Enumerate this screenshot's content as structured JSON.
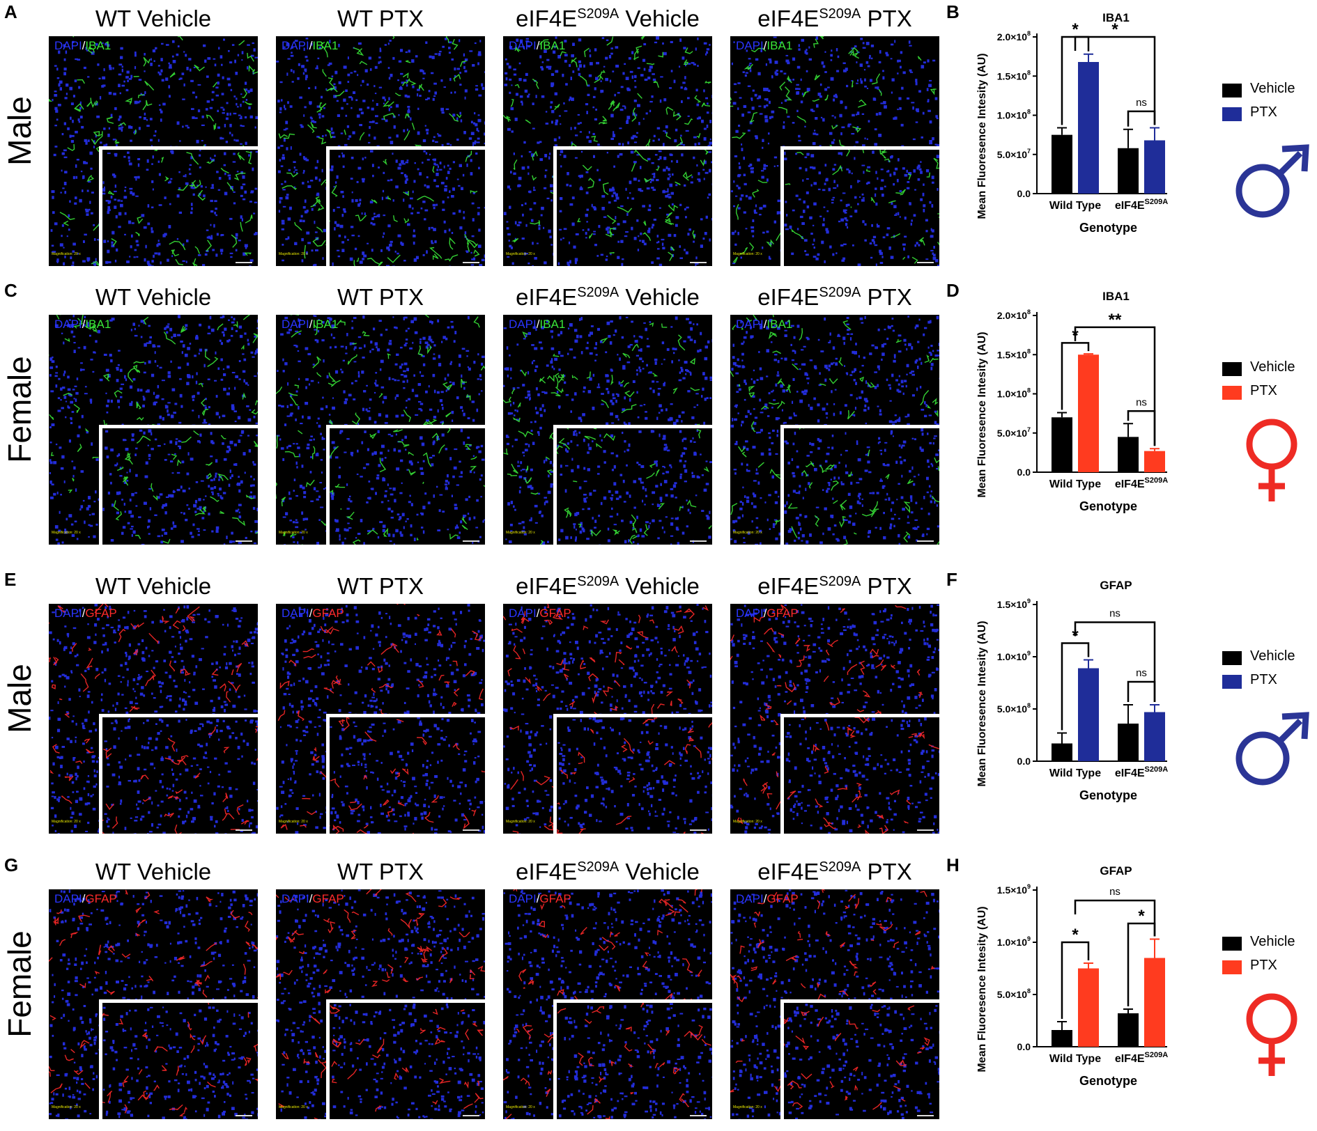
{
  "figure": {
    "rows": [
      {
        "letter_left": "A",
        "letter_right": "B",
        "row_label": "Male",
        "stain_nuclear": "DAPI",
        "stain_marker": "IBA1",
        "marker_color": "#39e639",
        "columns": [
          {
            "prefix": "WT Vehicle",
            "sup": "",
            "suffix": ""
          },
          {
            "prefix": "WT PTX",
            "sup": "",
            "suffix": ""
          },
          {
            "prefix": "eIF4E",
            "sup": "S209A",
            "suffix": " Vehicle"
          },
          {
            "prefix": "eIF4E",
            "sup": "S209A",
            "suffix": " PTX"
          }
        ],
        "legend": [
          {
            "label": "Vehicle",
            "color": "#000000"
          },
          {
            "label": "PTX",
            "color": "#1f2d99"
          }
        ],
        "sex_symbol": "male-symbol",
        "sex_color": "#2b3596"
      },
      {
        "letter_left": "C",
        "letter_right": "D",
        "row_label": "Female",
        "stain_nuclear": "DAPI",
        "stain_marker": "IBA1",
        "marker_color": "#39e639",
        "columns": [
          {
            "prefix": "WT Vehicle",
            "sup": "",
            "suffix": ""
          },
          {
            "prefix": "WT PTX",
            "sup": "",
            "suffix": ""
          },
          {
            "prefix": "eIF4E",
            "sup": "S209A",
            "suffix": " Vehicle"
          },
          {
            "prefix": "eIF4E",
            "sup": "S209A",
            "suffix": " PTX"
          }
        ],
        "legend": [
          {
            "label": "Vehicle",
            "color": "#000000"
          },
          {
            "label": "PTX",
            "color": "#ff3b1f"
          }
        ],
        "sex_symbol": "female-symbol",
        "sex_color": "#ee2b24"
      },
      {
        "letter_left": "E",
        "letter_right": "F",
        "row_label": "Male",
        "stain_nuclear": "DAPI",
        "stain_marker": "GFAP",
        "marker_color": "#ff2a2a",
        "columns": [
          {
            "prefix": "WT Vehicle",
            "sup": "",
            "suffix": ""
          },
          {
            "prefix": "WT PTX",
            "sup": "",
            "suffix": ""
          },
          {
            "prefix": "eIF4E",
            "sup": "S209A",
            "suffix": " Vehicle"
          },
          {
            "prefix": "eIF4E",
            "sup": "S209A",
            "suffix": " PTX"
          }
        ],
        "legend": [
          {
            "label": "Vehicle",
            "color": "#000000"
          },
          {
            "label": "PTX",
            "color": "#1f2d99"
          }
        ],
        "sex_symbol": "male-symbol",
        "sex_color": "#2b3596"
      },
      {
        "letter_left": "G",
        "letter_right": "H",
        "row_label": "Female",
        "stain_nuclear": "DAPI",
        "stain_marker": "GFAP",
        "marker_color": "#ff2a2a",
        "columns": [
          {
            "prefix": "WT Vehicle",
            "sup": "",
            "suffix": ""
          },
          {
            "prefix": "WT PTX",
            "sup": "",
            "suffix": ""
          },
          {
            "prefix": "eIF4E",
            "sup": "S209A",
            "suffix": " Vehicle"
          },
          {
            "prefix": "eIF4E",
            "sup": "S209A",
            "suffix": " PTX"
          }
        ],
        "legend": [
          {
            "label": "Vehicle",
            "color": "#000000"
          },
          {
            "label": "PTX",
            "color": "#ff3b1f"
          }
        ],
        "sex_symbol": "female-symbol",
        "sex_color": "#ee2b24"
      }
    ],
    "micrograph_caption": "Magnification: 20 x",
    "nuclear_color": "#2a35ff"
  },
  "chart_data": [
    {
      "type": "bar",
      "panel": "B",
      "title": "IBA1",
      "ylabel": "Mean Fluoresence Intesity (AU)",
      "xlabel": "Genotype",
      "categories": [
        {
          "main": "Wild Type",
          "sup": ""
        },
        {
          "main": "eIF4E",
          "sup": "S209A"
        }
      ],
      "yticks": [
        0,
        50000000,
        100000000,
        150000000,
        200000000
      ],
      "ytick_labels": [
        {
          "main": "0.0",
          "sup": ""
        },
        {
          "main": "5.0×10",
          "sup": "7"
        },
        {
          "main": "1.0×10",
          "sup": "8"
        },
        {
          "main": "1.5×10",
          "sup": "8"
        },
        {
          "main": "2.0×10",
          "sup": "8"
        }
      ],
      "ylim": [
        0,
        200000000
      ],
      "series": [
        {
          "name": "Vehicle",
          "color": "#000000",
          "values": [
            75000000,
            58000000
          ],
          "errors": [
            9000000,
            24000000
          ]
        },
        {
          "name": "PTX",
          "color": "#1f2d99",
          "values": [
            168000000,
            68000000
          ],
          "errors": [
            10000000,
            16000000
          ]
        }
      ],
      "brackets": [
        {
          "label": "*",
          "type": "within",
          "group": 0,
          "level": 200000000
        },
        {
          "label": "*",
          "type": "across",
          "level": 200000000
        },
        {
          "label": "ns",
          "type": "within",
          "group": 1,
          "level": 105000000
        }
      ]
    },
    {
      "type": "bar",
      "panel": "D",
      "title": "IBA1",
      "ylabel": "Mean Fluoresence Intesity (AU)",
      "xlabel": "Genotype",
      "categories": [
        {
          "main": "Wild Type",
          "sup": ""
        },
        {
          "main": "eIF4E",
          "sup": "S209A"
        }
      ],
      "yticks": [
        0,
        50000000,
        100000000,
        150000000,
        200000000
      ],
      "ytick_labels": [
        {
          "main": "0.0",
          "sup": ""
        },
        {
          "main": "5.0×10",
          "sup": "7"
        },
        {
          "main": "1.0×10",
          "sup": "8"
        },
        {
          "main": "1.5×10",
          "sup": "8"
        },
        {
          "main": "2.0×10",
          "sup": "8"
        }
      ],
      "ylim": [
        0,
        200000000
      ],
      "series": [
        {
          "name": "Vehicle",
          "color": "#000000",
          "values": [
            70000000,
            45000000
          ],
          "errors": [
            6000000,
            17000000
          ]
        },
        {
          "name": "PTX",
          "color": "#ff3b1f",
          "values": [
            150000000,
            27000000
          ],
          "errors": [
            1000000,
            3000000
          ]
        }
      ],
      "brackets": [
        {
          "label": "*",
          "type": "within",
          "group": 0,
          "level": 165000000
        },
        {
          "label": "**",
          "type": "across",
          "level": 185000000
        },
        {
          "label": "ns",
          "type": "within",
          "group": 1,
          "level": 78000000
        }
      ]
    },
    {
      "type": "bar",
      "panel": "F",
      "title": "GFAP",
      "ylabel": "Mean Fluoresence Intesity (AU)",
      "xlabel": "Genotype",
      "categories": [
        {
          "main": "Wild Type",
          "sup": ""
        },
        {
          "main": "eIF4E",
          "sup": "S209A"
        }
      ],
      "yticks": [
        0,
        500000000,
        1000000000,
        1500000000
      ],
      "ytick_labels": [
        {
          "main": "0.0",
          "sup": ""
        },
        {
          "main": "5.0×10",
          "sup": "8"
        },
        {
          "main": "1.0×10",
          "sup": "9"
        },
        {
          "main": "1.5×10",
          "sup": "9"
        }
      ],
      "ylim": [
        0,
        1500000000
      ],
      "series": [
        {
          "name": "Vehicle",
          "color": "#000000",
          "values": [
            170000000,
            360000000
          ],
          "errors": [
            100000000,
            180000000
          ]
        },
        {
          "name": "PTX",
          "color": "#1f2d99",
          "values": [
            890000000,
            470000000
          ],
          "errors": [
            80000000,
            70000000
          ]
        }
      ],
      "brackets": [
        {
          "label": "*",
          "type": "within",
          "group": 0,
          "level": 1130000000
        },
        {
          "label": "ns",
          "type": "across",
          "level": 1330000000
        },
        {
          "label": "ns",
          "type": "within",
          "group": 1,
          "level": 760000000
        }
      ]
    },
    {
      "type": "bar",
      "panel": "H",
      "title": "GFAP",
      "ylabel": "Mean Fluoresence Intesity (AU)",
      "xlabel": "Genotype",
      "categories": [
        {
          "main": "Wild Type",
          "sup": ""
        },
        {
          "main": "eIF4E",
          "sup": "S209A"
        }
      ],
      "yticks": [
        0,
        500000000,
        1000000000,
        1500000000
      ],
      "ytick_labels": [
        {
          "main": "0.0",
          "sup": ""
        },
        {
          "main": "5.0×10",
          "sup": "8"
        },
        {
          "main": "1.0×10",
          "sup": "9"
        },
        {
          "main": "1.5×10",
          "sup": "9"
        }
      ],
      "ylim": [
        0,
        1500000000
      ],
      "series": [
        {
          "name": "Vehicle",
          "color": "#000000",
          "values": [
            160000000,
            320000000
          ],
          "errors": [
            80000000,
            40000000
          ]
        },
        {
          "name": "PTX",
          "color": "#ff3b1f",
          "values": [
            750000000,
            850000000
          ],
          "errors": [
            50000000,
            180000000
          ]
        }
      ],
      "brackets": [
        {
          "label": "*",
          "type": "within",
          "group": 0,
          "level": 1000000000
        },
        {
          "label": "ns",
          "type": "across",
          "level": 1400000000
        },
        {
          "label": "*",
          "type": "within",
          "group": 1,
          "level": 1180000000
        }
      ]
    }
  ]
}
